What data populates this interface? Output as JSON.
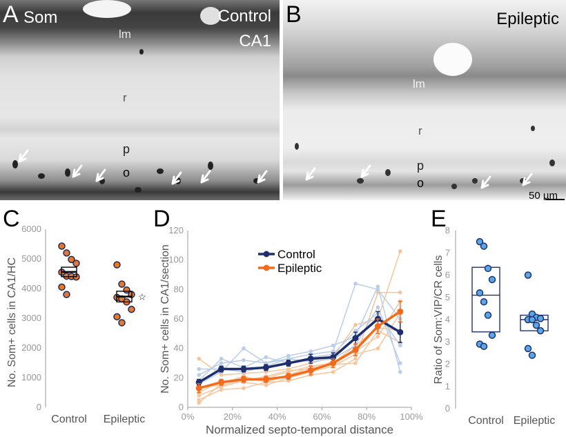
{
  "figure": {
    "panel_a": {
      "letter": "A",
      "stain": "Som",
      "condition": "Control",
      "region": "CA1",
      "layers": {
        "lm": "lm",
        "r": "r",
        "p": "p",
        "o": "o"
      }
    },
    "panel_b": {
      "letter": "B",
      "condition": "Epileptic",
      "layers": {
        "lm": "lm",
        "r": "r",
        "p": "p",
        "o": "o"
      },
      "scale_bar": "50 µm"
    },
    "panel_c": {
      "letter": "C"
    },
    "panel_d": {
      "letter": "D"
    },
    "panel_e": {
      "letter": "E"
    }
  },
  "chart_data": [
    {
      "id": "C",
      "type": "scatter",
      "ylabel": "No. Som+ cells in CA1/HC",
      "categories": [
        "Control",
        "Epileptic"
      ],
      "ylim": [
        0,
        6000
      ],
      "yticks": [
        "0",
        "1000",
        "2000",
        "3000",
        "4000",
        "5000",
        "6000"
      ],
      "series": [
        {
          "category": "Control",
          "mean": 4560,
          "sem": 160,
          "points": [
            5430,
            5200,
            4980,
            4850,
            4550,
            4420,
            4410,
            4390,
            4050,
            3800
          ]
        },
        {
          "category": "Epileptic",
          "mean": 3730,
          "sem": 180,
          "points": [
            4800,
            4150,
            3950,
            3800,
            3700,
            3650,
            3550,
            3300,
            3050,
            2850
          ]
        }
      ],
      "annotation": "☆",
      "point_color": "#e8762b"
    },
    {
      "id": "D",
      "type": "line",
      "xlabel": "Normalized septo-temporal distance",
      "ylabel": "No. Som+ cells in CA1/section",
      "xlim": [
        0,
        100
      ],
      "ylim": [
        0,
        120
      ],
      "xticks": [
        "0%",
        "20%",
        "40%",
        "60%",
        "80%",
        "100%"
      ],
      "yticks": [
        "0",
        "20",
        "40",
        "60",
        "80",
        "100",
        "120"
      ],
      "x": [
        5,
        15,
        25,
        35,
        45,
        55,
        65,
        75,
        85,
        95
      ],
      "series": [
        {
          "name": "Control",
          "color": "#1f2f6e",
          "values": [
            17,
            26,
            26,
            27,
            30,
            33,
            34,
            47,
            60,
            51
          ],
          "err": [
            2,
            2,
            2,
            2,
            2,
            3,
            3,
            4,
            5,
            7
          ]
        },
        {
          "name": "Epileptic",
          "color": "#f26b1d",
          "values": [
            13,
            17,
            19,
            19,
            21,
            25,
            30,
            39,
            55,
            65
          ],
          "err": [
            3,
            2,
            2,
            2,
            2,
            3,
            3,
            4,
            5,
            7
          ]
        }
      ],
      "legend": "top-right",
      "individual_control": [
        [
          22,
          30,
          32,
          30,
          33,
          36,
          38,
          84,
          80,
          60
        ],
        [
          16,
          24,
          40,
          30,
          35,
          38,
          42,
          48,
          82,
          24
        ],
        [
          18,
          33,
          27,
          34,
          30,
          34,
          36,
          52,
          64,
          42
        ],
        [
          26,
          26,
          24,
          28,
          33,
          31,
          33,
          42,
          68,
          30
        ]
      ],
      "individual_epileptic": [
        [
          33,
          22,
          23,
          24,
          26,
          30,
          34,
          56,
          60,
          106
        ],
        [
          5,
          12,
          13,
          17,
          18,
          22,
          24,
          33,
          78,
          78
        ],
        [
          10,
          18,
          17,
          15,
          20,
          24,
          28,
          36,
          40,
          64
        ],
        [
          14,
          15,
          19,
          20,
          24,
          28,
          30,
          42,
          54,
          52
        ],
        [
          8,
          14,
          18,
          21,
          25,
          26,
          31,
          38,
          48,
          72
        ],
        [
          3,
          16,
          21,
          17,
          22,
          27,
          29,
          30,
          52,
          44
        ]
      ],
      "control_light": "#b9cde8",
      "epileptic_light": "#f7c49b"
    },
    {
      "id": "E",
      "type": "scatter",
      "ylabel": "Ratio of Som:VIP/CR cells",
      "categories": [
        "Control",
        "Epileptic"
      ],
      "ylim": [
        0,
        8
      ],
      "yticks": [
        "0",
        "1",
        "2",
        "3",
        "4",
        "5",
        "6",
        "7",
        "8"
      ],
      "series": [
        {
          "category": "Control",
          "median": 5.1,
          "q1": 3.45,
          "q3": 6.35,
          "points": [
            7.5,
            7.3,
            6.3,
            5.8,
            5.2,
            4.8,
            4.2,
            3.3,
            2.9,
            2.8
          ]
        },
        {
          "category": "Epileptic",
          "median": 4.0,
          "q1": 3.5,
          "q3": 4.2,
          "points": [
            6.0,
            4.25,
            4.1,
            4.05,
            4.0,
            4.0,
            3.75,
            3.5,
            2.7,
            2.4
          ]
        }
      ],
      "point_color": "#5aa7e6"
    }
  ]
}
